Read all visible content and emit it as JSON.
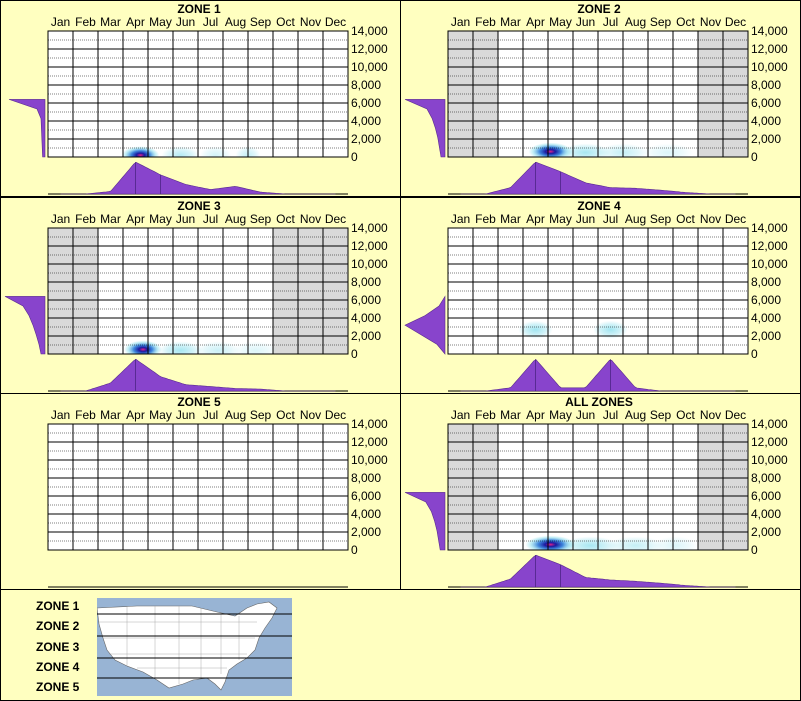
{
  "months": [
    "Jan",
    "Feb",
    "Mar",
    "Apr",
    "May",
    "Jun",
    "Jul",
    "Aug",
    "Sep",
    "Oct",
    "Nov",
    "Dec"
  ],
  "y_ticks": [
    "14,000",
    "12,000",
    "10,000",
    "8,000",
    "6,000",
    "4,000",
    "2,000",
    "0"
  ],
  "colors": {
    "background": "#ffffc0",
    "inactive_month": "#d9d9d9",
    "distribution": "#8844cc",
    "density_peak": "#e0208a",
    "density_core": "#1a1aa0",
    "density_mid": "#2a7ad8",
    "density_low": "#8fe0ee"
  },
  "chart_data": [
    {
      "type": "heatmap",
      "title": "ZONE 1",
      "ylim": [
        0,
        14000
      ],
      "inactive_months": [],
      "elevation_marginal": [
        0.06,
        0.07,
        0.08,
        0.09,
        0.1,
        0.2,
        0.9
      ],
      "month_marginal": [
        0,
        0,
        0.08,
        1.0,
        0.6,
        0.3,
        0.14,
        0.24,
        0.06,
        0,
        0,
        0
      ],
      "blobs": [
        {
          "month": 3.2,
          "elevation": 200,
          "intensity": 0.85,
          "spread_months": 0.6
        },
        {
          "month": 4.8,
          "elevation": 200,
          "intensity": 0.25,
          "spread_months": 0.6
        },
        {
          "month": 6.2,
          "elevation": 200,
          "intensity": 0.15,
          "spread_months": 0.5
        },
        {
          "month": 7.5,
          "elevation": 200,
          "intensity": 0.2,
          "spread_months": 0.4
        }
      ]
    },
    {
      "type": "heatmap",
      "title": "ZONE 2",
      "ylim": [
        0,
        14000
      ],
      "inactive_months": [
        "Jan",
        "Feb",
        "Nov",
        "Dec"
      ],
      "elevation_marginal": [
        0.1,
        0.14,
        0.18,
        0.24,
        0.32,
        0.45,
        1.0
      ],
      "month_marginal": [
        0,
        0,
        0.2,
        1.0,
        0.7,
        0.35,
        0.2,
        0.18,
        0.12,
        0.05,
        0,
        0
      ],
      "blobs": [
        {
          "month": 3.6,
          "elevation": 600,
          "intensity": 1.0,
          "spread_months": 0.7
        },
        {
          "month": 5.0,
          "elevation": 500,
          "intensity": 0.3,
          "spread_months": 0.8
        },
        {
          "month": 6.5,
          "elevation": 500,
          "intensity": 0.2,
          "spread_months": 0.8
        },
        {
          "month": 8.3,
          "elevation": 500,
          "intensity": 0.12,
          "spread_months": 0.8
        }
      ]
    },
    {
      "type": "heatmap",
      "title": "ZONE 3",
      "ylim": [
        0,
        14000
      ],
      "inactive_months": [
        "Jan",
        "Feb",
        "Oct",
        "Nov",
        "Dec"
      ],
      "elevation_marginal": [
        0.1,
        0.15,
        0.22,
        0.3,
        0.4,
        0.55,
        1.0
      ],
      "month_marginal": [
        0,
        0,
        0.25,
        1.0,
        0.45,
        0.2,
        0.14,
        0.08,
        0.06,
        0,
        0,
        0
      ],
      "blobs": [
        {
          "month": 3.3,
          "elevation": 500,
          "intensity": 1.0,
          "spread_months": 0.6
        },
        {
          "month": 4.8,
          "elevation": 400,
          "intensity": 0.3,
          "spread_months": 0.7
        },
        {
          "month": 6.3,
          "elevation": 400,
          "intensity": 0.18,
          "spread_months": 0.7
        },
        {
          "month": 7.8,
          "elevation": 400,
          "intensity": 0.12,
          "spread_months": 0.7
        }
      ]
    },
    {
      "type": "heatmap",
      "title": "ZONE 4",
      "ylim": [
        0,
        14000
      ],
      "inactive_months": [],
      "elevation_marginal": [
        0,
        0.2,
        0.6,
        1.0,
        0.5,
        0.15,
        0
      ],
      "month_marginal": [
        0,
        0,
        0.1,
        1.0,
        0.1,
        0.1,
        1.0,
        0.1,
        0,
        0,
        0,
        0
      ],
      "blobs": [
        {
          "month": 3.0,
          "elevation": 2700,
          "intensity": 0.32,
          "spread_months": 0.55
        },
        {
          "month": 6.0,
          "elevation": 2700,
          "intensity": 0.32,
          "spread_months": 0.55
        }
      ]
    },
    {
      "type": "heatmap",
      "title": "ZONE 5",
      "ylim": [
        0,
        14000
      ],
      "inactive_months": [],
      "elevation_marginal": [],
      "month_marginal": [],
      "blobs": []
    },
    {
      "type": "heatmap",
      "title": "ALL ZONES",
      "ylim": [
        0,
        14000
      ],
      "inactive_months": [
        "Jan",
        "Feb",
        "Nov",
        "Dec"
      ],
      "elevation_marginal": [
        0.12,
        0.16,
        0.2,
        0.26,
        0.34,
        0.48,
        1.0
      ],
      "month_marginal": [
        0,
        0,
        0.25,
        1.0,
        0.7,
        0.3,
        0.22,
        0.18,
        0.12,
        0.05,
        0,
        0
      ],
      "blobs": [
        {
          "month": 3.6,
          "elevation": 600,
          "intensity": 1.0,
          "spread_months": 0.8
        },
        {
          "month": 5.2,
          "elevation": 500,
          "intensity": 0.3,
          "spread_months": 0.9
        },
        {
          "month": 7.0,
          "elevation": 500,
          "intensity": 0.2,
          "spread_months": 0.9
        },
        {
          "month": 8.6,
          "elevation": 500,
          "intensity": 0.12,
          "spread_months": 0.7
        }
      ]
    }
  ],
  "legend": {
    "zones": [
      "ZONE 1",
      "ZONE 2",
      "ZONE 3",
      "ZONE 4",
      "ZONE 5"
    ],
    "map": {
      "water_color": "#98b4d4",
      "land_color": "#ffffff"
    }
  }
}
